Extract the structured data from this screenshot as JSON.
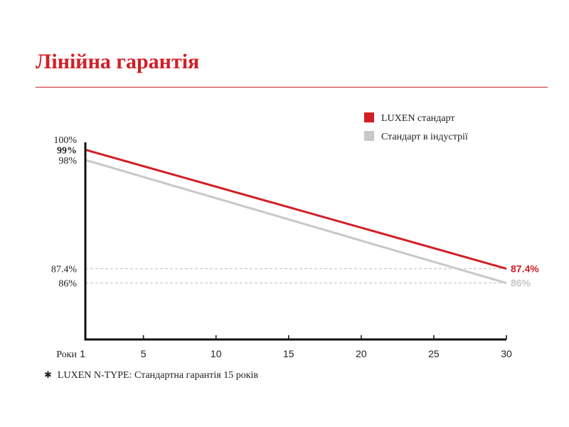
{
  "title": "Лінійна гарантія",
  "footnote": {
    "symbol": "✱",
    "text": "LUXEN N-TYPE: Стандартна гарантія 15 років"
  },
  "colors": {
    "accent": "#d11f26",
    "industry": "#c8c8c8",
    "axis": "#111111",
    "grid": "#bfbfbf"
  },
  "chart_data": {
    "type": "line",
    "title": "",
    "xlabel": "Роки",
    "ylabel": "",
    "xlim": [
      1,
      30
    ],
    "ylim": [
      80.5,
      100
    ],
    "x_ticks": [
      {
        "v": 1,
        "label": "1"
      },
      {
        "v": 5,
        "label": "5"
      },
      {
        "v": 10,
        "label": "10"
      },
      {
        "v": 15,
        "label": "15"
      },
      {
        "v": 20,
        "label": "20"
      },
      {
        "v": 25,
        "label": "25"
      },
      {
        "v": 30,
        "label": "30"
      }
    ],
    "y_ticks": [
      {
        "v": 100,
        "label": "100%",
        "highlight": false
      },
      {
        "v": 99,
        "label": "99%",
        "highlight": true
      },
      {
        "v": 98,
        "label": "98%",
        "highlight": false
      },
      {
        "v": 87.4,
        "label": "87.4%",
        "highlight": false
      },
      {
        "v": 86,
        "label": "86%",
        "highlight": false
      }
    ],
    "gridlines": [
      87.4,
      86
    ],
    "legend_position": "top-right",
    "series": [
      {
        "name": "LUXEN стандарт",
        "color": "#d11f26",
        "x": [
          1,
          30
        ],
        "y": [
          99,
          87.4
        ],
        "end_label": "87.4%"
      },
      {
        "name": "Стандарт в індустрії",
        "color": "#c8c8c8",
        "x": [
          1,
          30
        ],
        "y": [
          98,
          86
        ],
        "end_label": "86%"
      }
    ]
  }
}
